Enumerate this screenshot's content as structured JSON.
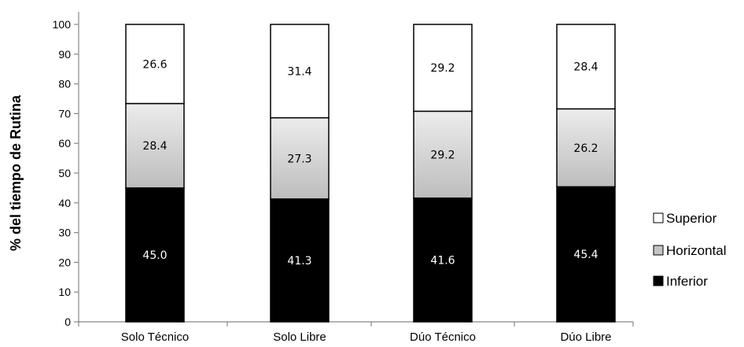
{
  "chart_data": {
    "type": "bar",
    "stacked": true,
    "categories": [
      "Solo Técnico",
      "Solo Libre",
      "Dúo Técnico",
      "Dúo Libre"
    ],
    "series": [
      {
        "name": "Inferior",
        "values": [
          45.0,
          41.3,
          41.6,
          45.4
        ],
        "labels": [
          "45.0",
          "41.3",
          "41.6",
          "45.4"
        ],
        "color": "#000000",
        "fill": "solid"
      },
      {
        "name": "Horizontal",
        "values": [
          28.4,
          27.3,
          29.2,
          26.2
        ],
        "labels": [
          "28.4",
          "27.3",
          "29.2",
          "26.2"
        ],
        "color": "#c8c8c8",
        "fill": "gradient"
      },
      {
        "name": "Superior",
        "values": [
          26.6,
          31.4,
          29.2,
          28.4
        ],
        "labels": [
          "26.6",
          "31.4",
          "29.2",
          "28.4"
        ],
        "color": "#ffffff",
        "fill": "solid"
      }
    ],
    "title": "",
    "xlabel": "",
    "ylabel": "% del tiempo de Rutina",
    "ylim": [
      0,
      100
    ],
    "yticks": [
      "0",
      "10",
      "20",
      "30",
      "40",
      "50",
      "60",
      "70",
      "80",
      "90",
      "100"
    ],
    "legend_order": [
      "Superior",
      "Horizontal",
      "Inferior"
    ],
    "legend_position": "right",
    "grid": false
  }
}
